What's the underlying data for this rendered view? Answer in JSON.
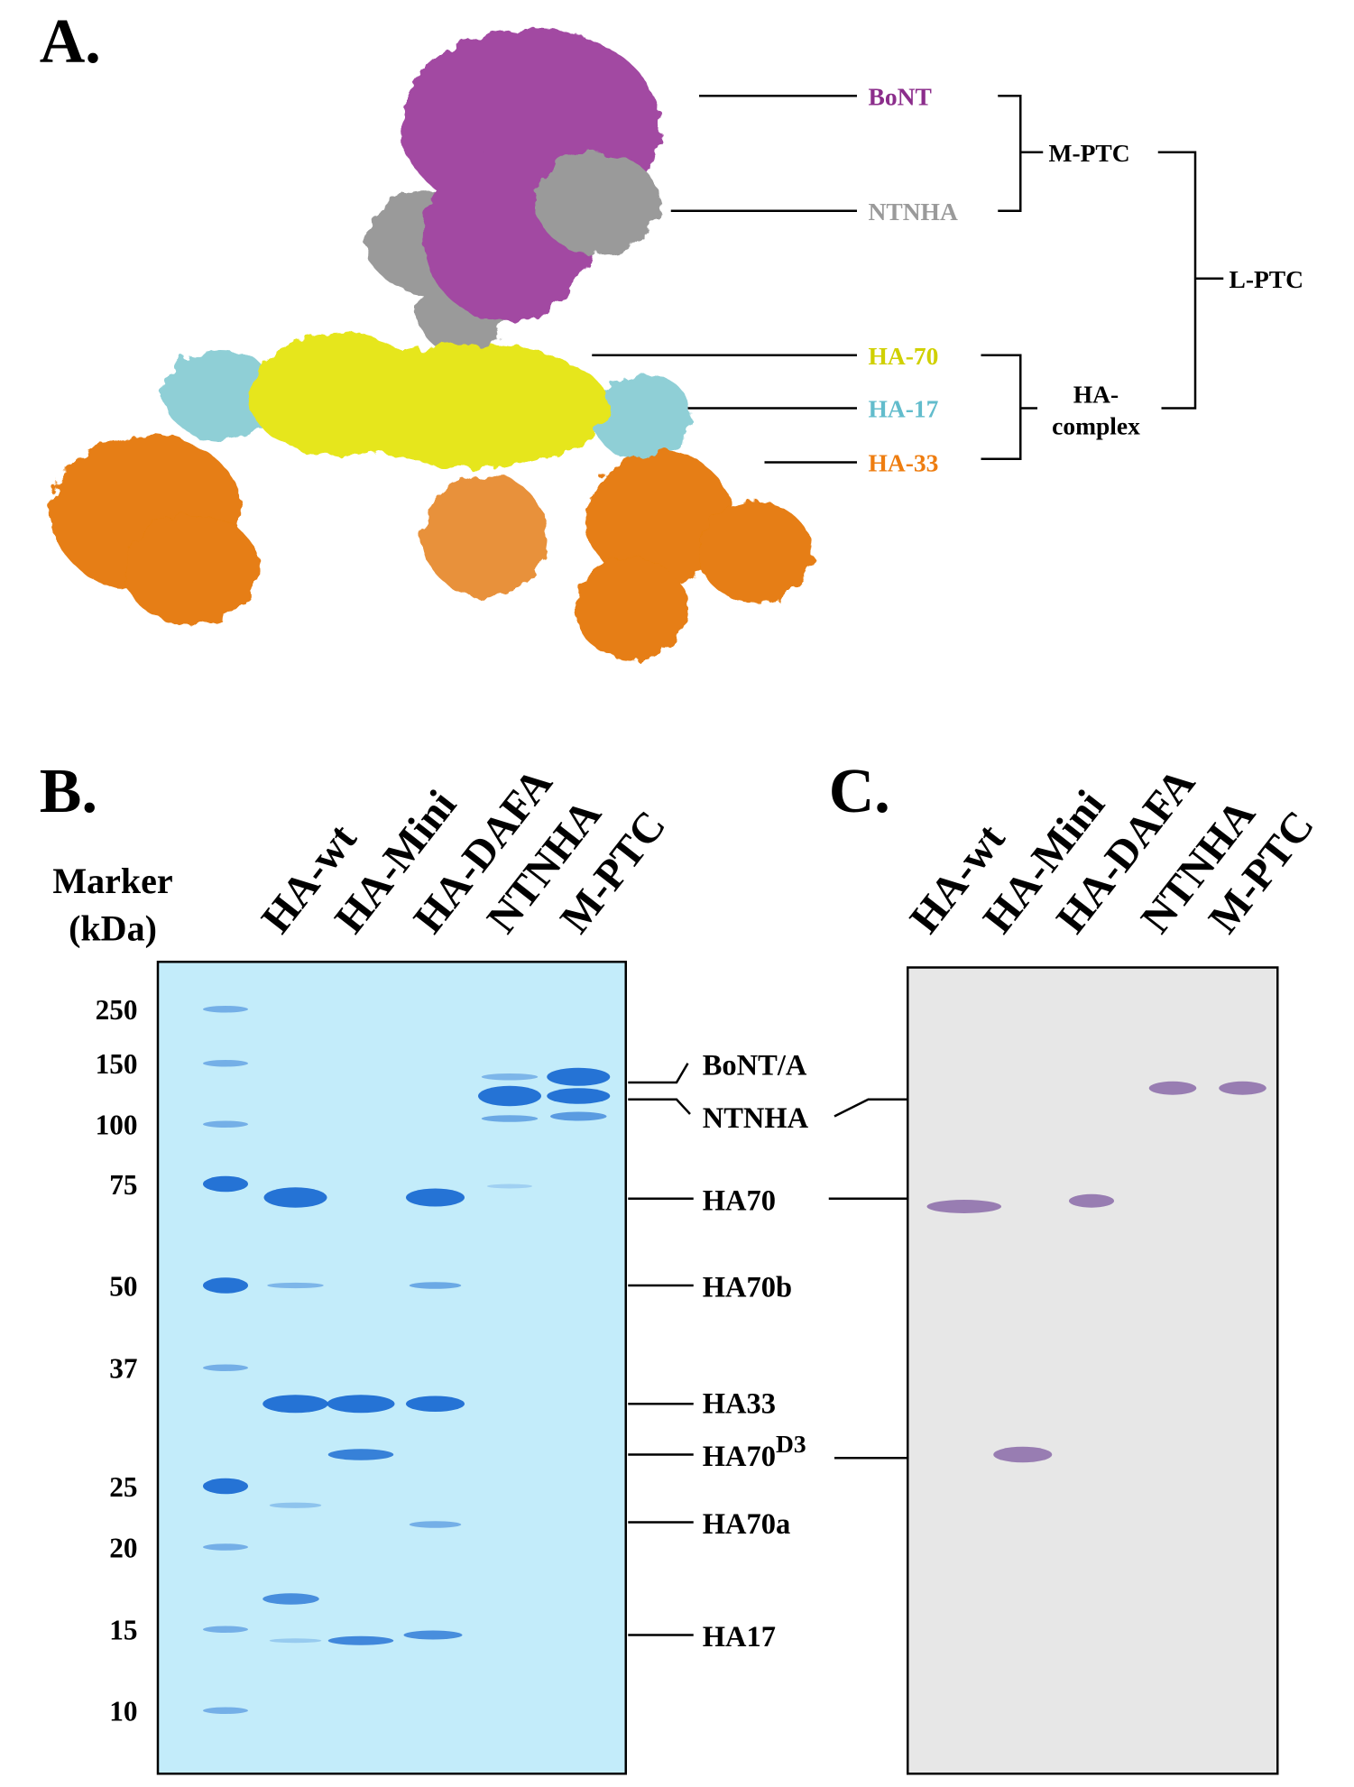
{
  "panel_a": {
    "label": "A.",
    "components": [
      "BoNT",
      "NTNHA",
      "HA-70",
      "HA-17",
      "HA-33"
    ],
    "groups": {
      "m_ptc": "M-PTC",
      "l_ptc": "L-PTC",
      "ha_complex": [
        "HA-",
        "complex"
      ]
    }
  },
  "panel_b": {
    "label": "B.",
    "marker_title": [
      "Marker",
      "(kDa)"
    ],
    "marker_sizes": [
      250,
      150,
      100,
      75,
      50,
      37,
      25,
      20,
      15,
      10
    ],
    "lanes": [
      "HA-wt",
      "HA-Mini",
      "HA-DAFA",
      "NTNHA",
      "M-PTC"
    ],
    "bands": [
      "BoNT/A",
      "NTNHA",
      "HA70",
      "HA70b",
      "HA33",
      {
        "text": "HA70",
        "sup": "D3"
      },
      "HA70a",
      "HA17"
    ]
  },
  "panel_c": {
    "label": "C.",
    "lanes": [
      "HA-wt",
      "HA-Mini",
      "HA-DAFA",
      "NTNHA",
      "M-PTC"
    ]
  }
}
